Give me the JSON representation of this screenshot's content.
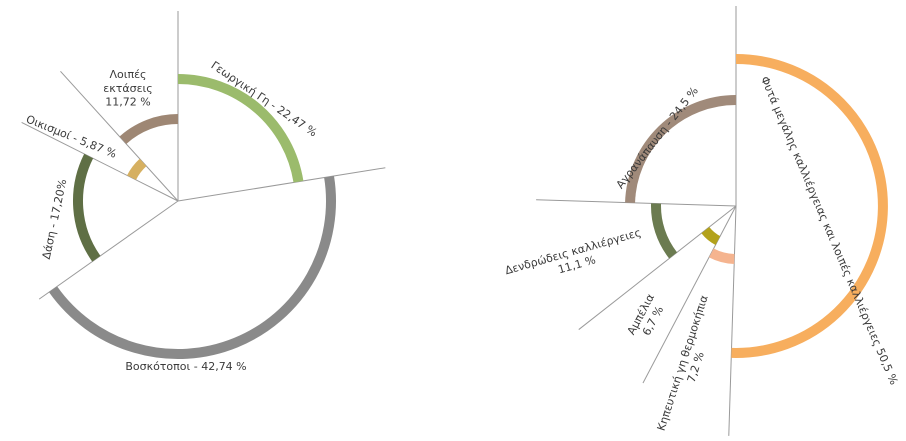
{
  "chart_data": [
    {
      "type": "pie",
      "series": [
        {
          "label": "Γεωργική Γη",
          "value_text": "22,47 %",
          "value": 22.47,
          "color": "#9bbb6c"
        },
        {
          "label": "Βοσκότοποι",
          "value_text": "42,74 %",
          "value": 42.74,
          "color": "#8a8a8a"
        },
        {
          "label": "Δάση",
          "value_text": "17,20%",
          "value": 17.2,
          "color": "#5f6f45"
        },
        {
          "label": "Οικισμοί",
          "value_text": "5,87 %",
          "value": 5.87,
          "color": "#d6b061"
        },
        {
          "label": "Λοιπές εκτάσεις",
          "value_text": "11,72 %",
          "value": 11.72,
          "color": "#9e8774"
        }
      ]
    },
    {
      "type": "pie",
      "series": [
        {
          "label": "Φυτά μεγάλης καλλιέργειας και λοιπές καλλιέργειες",
          "value_text": "50,5 %",
          "value": 50.5,
          "color": "#f7ae5e"
        },
        {
          "label": "Κηπευτική γη θερμοκήπια",
          "value_text": "7,2 %",
          "value": 7.2,
          "color": "#f5b48f"
        },
        {
          "label": "Αμπέλια",
          "value_text": "6,7 %",
          "value": 6.7,
          "color": "#b3a21c"
        },
        {
          "label": "Δενδρώδεις καλλιέργειες",
          "value_text": "11,1 %",
          "value": 11.1,
          "color": "#6b7b50"
        },
        {
          "label": "Αγρανάπαυση",
          "value_text": "24,5 %",
          "value": 24.5,
          "color": "#a08a7a"
        }
      ]
    }
  ]
}
